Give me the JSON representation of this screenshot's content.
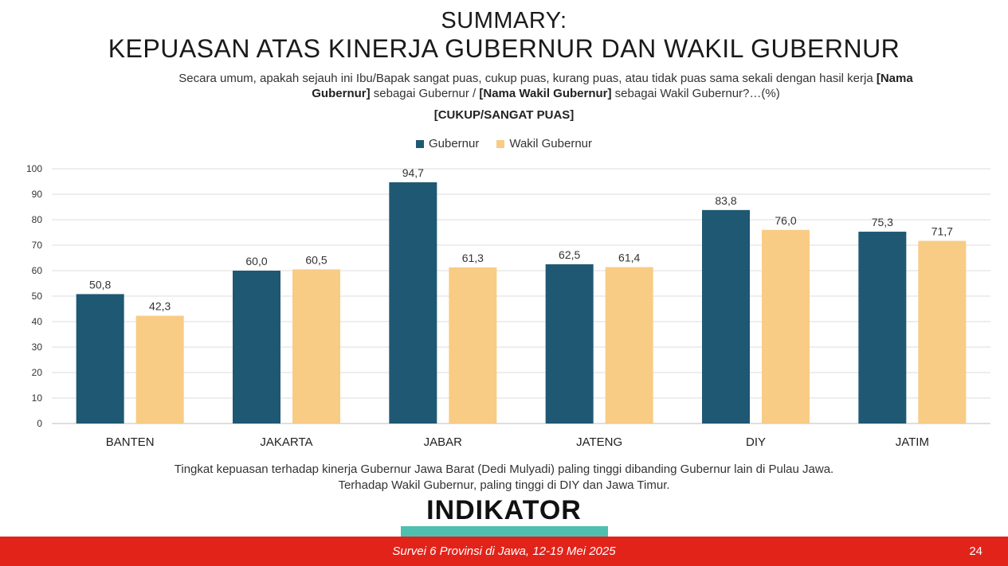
{
  "header": {
    "title_line1": "SUMMARY:",
    "title_line2": "KEPUASAN ATAS KINERJA GUBERNUR DAN WAKIL GUBERNUR",
    "question_part1": "Secara umum, apakah sejauh ini Ibu/Bapak sangat puas, cukup puas, kurang puas, atau tidak puas sama sekali dengan hasil kerja ",
    "question_bold1": "[Nama Gubernur]",
    "question_part2": " sebagai Gubernur / ",
    "question_bold2": "[Nama Wakil Gubernur]",
    "question_part3": " sebagai Wakil Gubernur?…(%)",
    "subtitle": "[CUKUP/SANGAT PUAS]"
  },
  "chart_data": {
    "type": "bar",
    "categories": [
      "BANTEN",
      "JAKARTA",
      "JABAR",
      "JATENG",
      "DIY",
      "JATIM"
    ],
    "series": [
      {
        "name": "Gubernur",
        "color": "#1f5873",
        "values": [
          50.8,
          60.0,
          94.7,
          62.5,
          83.8,
          75.3
        ],
        "labels": [
          "50,8",
          "60,0",
          "94,7",
          "62,5",
          "83,8",
          "75,3"
        ]
      },
      {
        "name": "Wakil Gubernur",
        "color": "#f8cc84",
        "values": [
          42.3,
          60.5,
          61.3,
          61.4,
          76.0,
          71.7
        ],
        "labels": [
          "42,3",
          "60,5",
          "61,3",
          "61,4",
          "76,0",
          "71,7"
        ]
      }
    ],
    "ylim": [
      0,
      100
    ],
    "yticks": [
      0,
      10,
      20,
      30,
      40,
      50,
      60,
      70,
      80,
      90,
      100
    ],
    "grid": true,
    "legend_position": "top-center"
  },
  "note": {
    "line1": "Tingkat kepuasan terhadap kinerja Gubernur Jawa Barat (Dedi Mulyadi) paling tinggi dibanding Gubernur lain di Pulau Jawa.",
    "line2": "Terhadap Wakil Gubernur, paling tinggi di DIY dan Jawa Timur."
  },
  "brand": {
    "logo_text": "INDIKATOR",
    "accent_color": "#4fbfb0",
    "footer_color": "#e2231a"
  },
  "footer": {
    "text": "Survei 6 Provinsi di Jawa, 12-19 Mei 2025",
    "page_number": "24"
  }
}
